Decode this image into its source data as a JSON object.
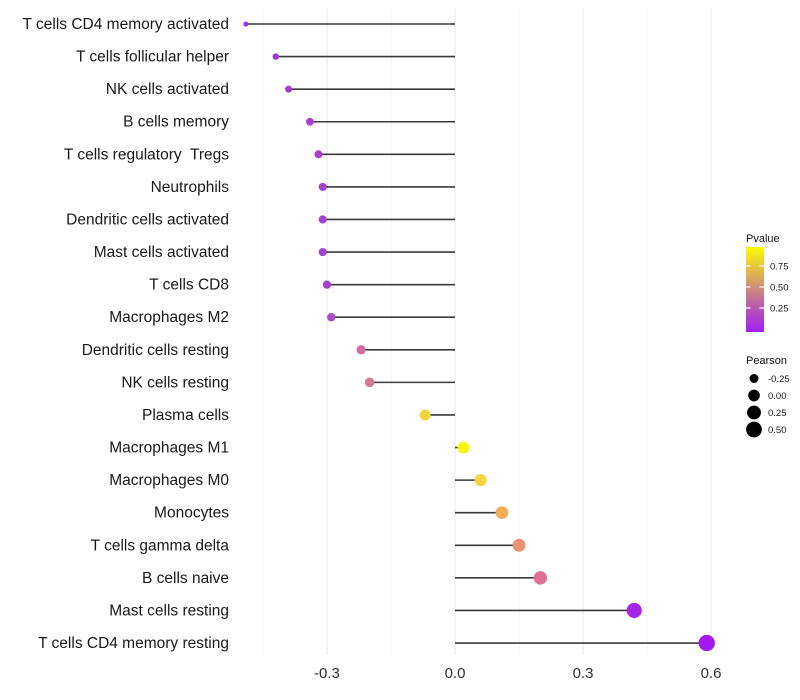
{
  "chart_data": {
    "type": "lollipop",
    "orientation": "horizontal",
    "title": "",
    "xlabel": "",
    "ylabel": "",
    "xlim": [
      -0.52,
      0.63
    ],
    "grid": true,
    "x_ticks": [
      -0.3,
      0.0,
      0.3,
      0.6
    ],
    "x_tick_labels": [
      "-0.3",
      "0.0",
      "0.3",
      "0.6"
    ],
    "x_minor_ticks": [
      -0.45,
      -0.15,
      0.15,
      0.45
    ],
    "stem_color": "#3a3a3a",
    "grid_major_color": "#e7e7e7",
    "grid_minor_color": "#f3f3f3",
    "points": [
      {
        "label": "T cells CD4 memory activated",
        "pearson": -0.49,
        "color": "#A133D2"
      },
      {
        "label": "T cells follicular helper",
        "pearson": -0.42,
        "color": "#A137D3"
      },
      {
        "label": "NK cells activated",
        "pearson": -0.39,
        "color": "#A43AD1"
      },
      {
        "label": "B cells memory",
        "pearson": -0.34,
        "color": "#A83ED5"
      },
      {
        "label": "T cells regulatory  Tregs",
        "pearson": -0.32,
        "color": "#A63ED1"
      },
      {
        "label": "Neutrophils",
        "pearson": -0.31,
        "color": "#A742D0"
      },
      {
        "label": "Dendritic cells activated",
        "pearson": -0.31,
        "color": "#A540D1"
      },
      {
        "label": "Mast cells activated",
        "pearson": -0.31,
        "color": "#A743CF"
      },
      {
        "label": "T cells CD8",
        "pearson": -0.3,
        "color": "#A440D0"
      },
      {
        "label": "Macrophages M2",
        "pearson": -0.29,
        "color": "#AC4CCB"
      },
      {
        "label": "Dendritic cells resting",
        "pearson": -0.22,
        "color": "#CD6FA0"
      },
      {
        "label": "NK cells resting",
        "pearson": -0.2,
        "color": "#D37990"
      },
      {
        "label": "Plasma cells",
        "pearson": -0.07,
        "color": "#F6D33C"
      },
      {
        "label": "Macrophages M1",
        "pearson": 0.02,
        "color": "#F7F50E"
      },
      {
        "label": "Macrophages M0",
        "pearson": 0.06,
        "color": "#F8D347"
      },
      {
        "label": "Monocytes",
        "pearson": 0.11,
        "color": "#F3AC55"
      },
      {
        "label": "T cells gamma delta",
        "pearson": 0.15,
        "color": "#EC9173"
      },
      {
        "label": "B cells naive",
        "pearson": 0.2,
        "color": "#DC7396"
      },
      {
        "label": "Mast cells resting",
        "pearson": 0.42,
        "color": "#A526E6"
      },
      {
        "label": "T cells CD4 memory resting",
        "pearson": 0.59,
        "color": "#A31AEE"
      }
    ],
    "legend": {
      "pvalue": {
        "title": "Pvalue",
        "ticks": [
          "0.75",
          "0.50",
          "0.25"
        ],
        "tick_values": [
          0.75,
          0.5,
          0.25
        ],
        "gradient_low_color": "#A020F0",
        "gradient_high_color": "#FFFF00"
      },
      "pearson": {
        "title": "Pearson",
        "size_labels": [
          "-0.25",
          "0.00",
          "0.25",
          "0.50"
        ],
        "size_values": [
          -0.25,
          0.0,
          0.25,
          0.5
        ],
        "dot_color": "#000000"
      }
    }
  }
}
